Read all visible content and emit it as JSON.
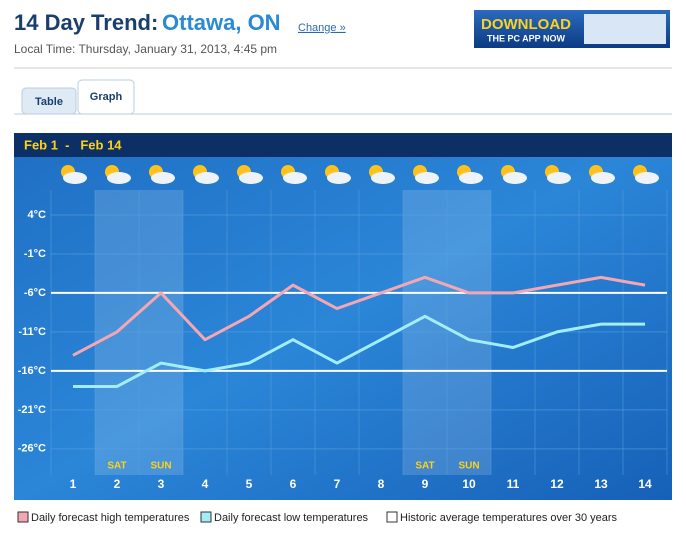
{
  "header": {
    "title": "14 Day Trend:",
    "location": "Ottawa, ON",
    "change_link": "Change »",
    "local_time": "Local Time: Thursday, January 31, 2013, 4:45 pm"
  },
  "ad": {
    "line1": "DOWNLOAD",
    "line2": "THE PC APP NOW"
  },
  "tabs": [
    "Table",
    "Graph"
  ],
  "chart_data": {
    "type": "line",
    "title": "Feb 1  -   Feb 14",
    "categories": [
      "1",
      "2",
      "3",
      "4",
      "5",
      "6",
      "7",
      "8",
      "9",
      "10",
      "11",
      "12",
      "13",
      "14"
    ],
    "weekend_labels": [
      null,
      "SAT",
      "SUN",
      null,
      null,
      null,
      null,
      null,
      "SAT",
      "SUN",
      null,
      null,
      null,
      null
    ],
    "series": [
      {
        "name": "Daily forecast high temperatures",
        "color": "#f4a7b2",
        "values": [
          -14,
          -11,
          -6,
          -12,
          -9,
          -5,
          -8,
          -6,
          -4,
          -6,
          -6,
          -5,
          -4,
          -5
        ]
      },
      {
        "name": "Daily forecast low temperatures",
        "color": "#a2eef8",
        "values": [
          -18,
          -18,
          -15,
          -16,
          -15,
          -12,
          -15,
          -12,
          -9,
          -12,
          -13,
          -11,
          -10,
          -10
        ]
      }
    ],
    "reference_lines": {
      "name": "Historic average temperatures over 30 years",
      "color": "#ffffff",
      "values": [
        -6,
        -16
      ]
    },
    "ylim": [
      -30,
      7
    ],
    "yticks": [
      {
        "value": 4,
        "label": "4°C"
      },
      {
        "value": -1,
        "label": "-1°C"
      },
      {
        "value": -6,
        "label": "-6°C"
      },
      {
        "value": -11,
        "label": "-11°C"
      },
      {
        "value": -16,
        "label": "-16°C"
      },
      {
        "value": -21,
        "label": "-21°C"
      },
      {
        "value": -26,
        "label": "-26°C"
      }
    ],
    "grid": true
  }
}
